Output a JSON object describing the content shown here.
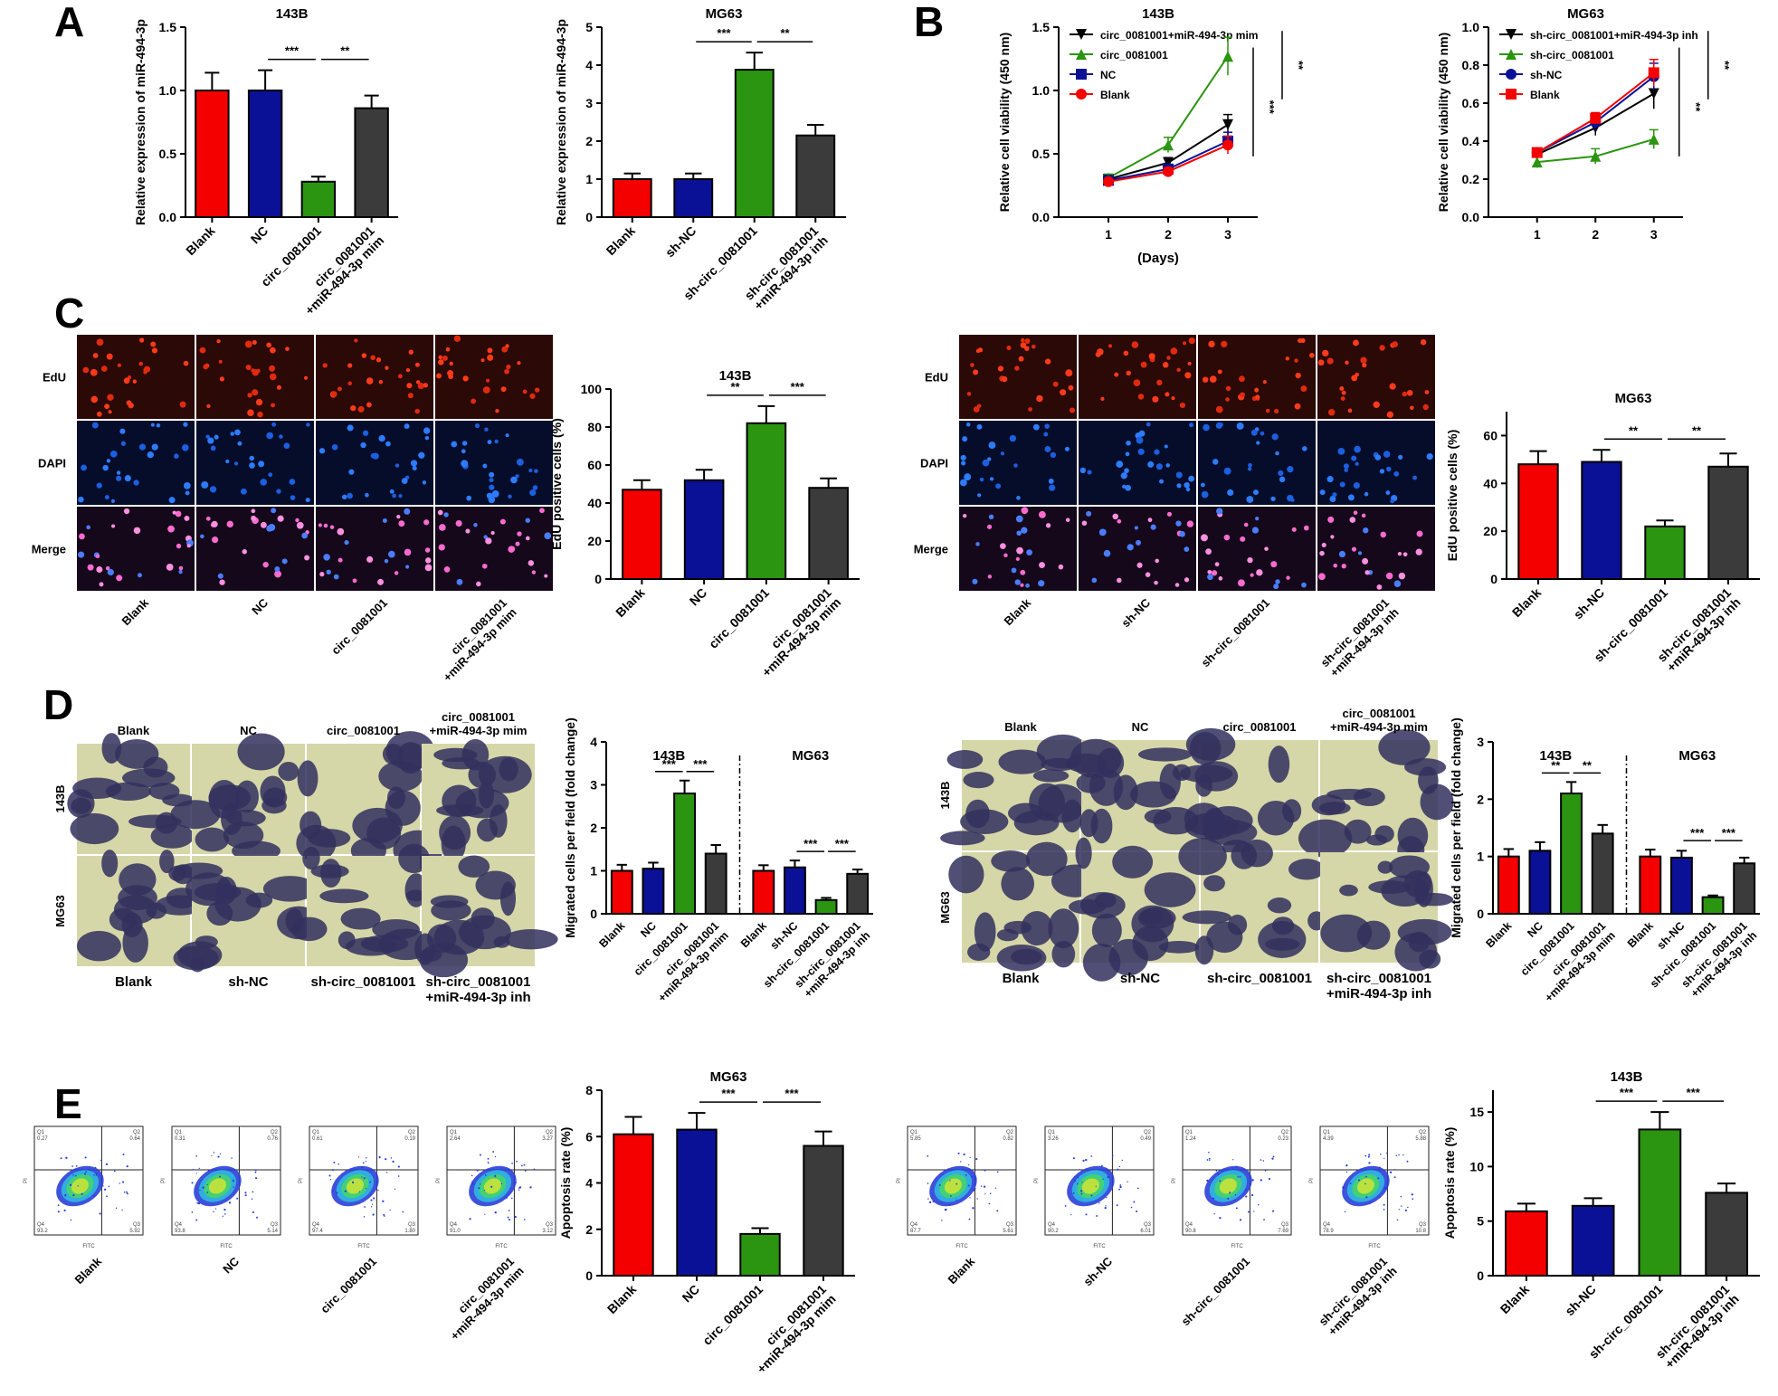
{
  "colors": {
    "red": "#f40000",
    "blue": "#0a1196",
    "green": "#2b9410",
    "dark": "#3b3b3b"
  },
  "panel_labels": [
    "A",
    "B",
    "C",
    "D",
    "E"
  ],
  "chart_data": [
    {
      "id": "A1",
      "type": "bar",
      "title": "143B",
      "ylabel": "Relative expression of miR-494-3p",
      "categories": [
        "Blank",
        "NC",
        "circ_0081001",
        "circ_0081001\n+miR-494-3p mim"
      ],
      "values": [
        1.0,
        1.0,
        0.28,
        0.86
      ],
      "errors": [
        0.14,
        0.16,
        0.04,
        0.1
      ],
      "ylim": [
        0,
        1.5
      ],
      "yticks": [
        "0.0",
        "0.5",
        "1.0",
        "1.5"
      ],
      "sig": [
        {
          "a": 1,
          "b": 2,
          "label": "***"
        },
        {
          "a": 2,
          "b": 3,
          "label": "**"
        }
      ]
    },
    {
      "id": "A2",
      "type": "bar",
      "title": "MG63",
      "ylabel": "Relative expression of miR-494-3p",
      "categories": [
        "Blank",
        "sh-NC",
        "sh-circ_0081001",
        "sh-circ_0081001\n+miR-494-3p inh"
      ],
      "values": [
        1.0,
        1.0,
        3.88,
        2.15
      ],
      "errors": [
        0.15,
        0.15,
        0.45,
        0.28
      ],
      "ylim": [
        0,
        5
      ],
      "yticks": [
        "0",
        "1",
        "2",
        "3",
        "4",
        "5"
      ],
      "sig": [
        {
          "a": 1,
          "b": 2,
          "label": "***"
        },
        {
          "a": 2,
          "b": 3,
          "label": "**"
        }
      ]
    },
    {
      "id": "B1",
      "type": "line",
      "title": "143B",
      "ylabel": "Relative cell viability  (450 nm)",
      "xlabel": "(Days)",
      "x": [
        1,
        2,
        3
      ],
      "xticks": [
        "1",
        "2",
        "3"
      ],
      "ylim": [
        0,
        1.5
      ],
      "yticks": [
        "0.0",
        "0.5",
        "1.0",
        "1.5"
      ],
      "series": [
        {
          "name": "circ_0081001+miR-494-3p mim",
          "color": "#000000",
          "marker": "tri-down",
          "values": [
            0.3,
            0.43,
            0.73
          ],
          "errors": [
            0.03,
            0.04,
            0.08
          ]
        },
        {
          "name": "circ_0081001",
          "color": "#2b9410",
          "marker": "tri-up",
          "values": [
            0.31,
            0.57,
            1.27
          ],
          "errors": [
            0.03,
            0.06,
            0.15
          ]
        },
        {
          "name": "NC",
          "color": "#0a1196",
          "marker": "square",
          "values": [
            0.29,
            0.38,
            0.6
          ],
          "errors": [
            0.02,
            0.03,
            0.07
          ]
        },
        {
          "name": "Blank",
          "color": "#f40000",
          "marker": "circle",
          "values": [
            0.28,
            0.36,
            0.57
          ],
          "errors": [
            0.02,
            0.03,
            0.07
          ]
        }
      ],
      "sig": [
        {
          "label": "***"
        },
        {
          "label": "**"
        }
      ]
    },
    {
      "id": "B2",
      "type": "line",
      "title": "MG63",
      "ylabel": "Relative cell viability  (450 nm)",
      "x": [
        1,
        2,
        3
      ],
      "xticks": [
        "1",
        "2",
        "3"
      ],
      "ylim": [
        0,
        1.0
      ],
      "yticks": [
        "0.0",
        "0.2",
        "0.4",
        "0.6",
        "0.8",
        "1.0"
      ],
      "series": [
        {
          "name": "sh-circ_0081001+miR-494-3p inh",
          "color": "#000000",
          "marker": "tri-down",
          "values": [
            0.33,
            0.47,
            0.65
          ],
          "errors": [
            0.02,
            0.04,
            0.08
          ]
        },
        {
          "name": "sh-circ_0081001",
          "color": "#2b9410",
          "marker": "tri-up",
          "values": [
            0.29,
            0.32,
            0.41
          ],
          "errors": [
            0.03,
            0.04,
            0.05
          ]
        },
        {
          "name": "sh-NC",
          "color": "#0a1196",
          "marker": "circle",
          "values": [
            0.34,
            0.5,
            0.74
          ],
          "errors": [
            0.02,
            0.04,
            0.07
          ]
        },
        {
          "name": "Blank",
          "color": "#f40000",
          "marker": "square",
          "values": [
            0.34,
            0.52,
            0.76
          ],
          "errors": [
            0.02,
            0.03,
            0.07
          ]
        }
      ],
      "sig": [
        {
          "label": "**"
        },
        {
          "label": "**"
        }
      ]
    },
    {
      "id": "C1",
      "type": "bar",
      "title": "143B",
      "ylabel": "EdU positive cells (%)",
      "categories": [
        "Blank",
        "NC",
        "circ_0081001",
        "circ_0081001\n+miR-494-3p mim"
      ],
      "values": [
        47,
        52,
        82,
        48
      ],
      "errors": [
        5,
        5.5,
        9,
        5
      ],
      "ylim": [
        0,
        100
      ],
      "yticks": [
        "0",
        "20",
        "40",
        "60",
        "80",
        "100"
      ],
      "sig": [
        {
          "a": 1,
          "b": 2,
          "label": "**"
        },
        {
          "a": 2,
          "b": 3,
          "label": "***"
        }
      ]
    },
    {
      "id": "C2",
      "type": "bar",
      "title": "MG63",
      "ylabel": "EdU positive cells (%)",
      "categories": [
        "Blank",
        "sh-NC",
        "sh-circ_0081001",
        "sh-circ_0081001\n+miR-494-3p inh"
      ],
      "values": [
        48,
        49,
        22,
        47
      ],
      "errors": [
        5.5,
        5,
        2.5,
        5.5
      ],
      "ylim": [
        0,
        70
      ],
      "yticks": [
        "0",
        "20",
        "40",
        "60"
      ],
      "sig": [
        {
          "a": 1,
          "b": 2,
          "label": "**"
        },
        {
          "a": 2,
          "b": 3,
          "label": "**"
        }
      ]
    },
    {
      "id": "D1",
      "type": "bar",
      "title": "",
      "ylabel": "Migrated cells per field (fold change)",
      "groups": [
        {
          "title": "143B",
          "categories": [
            "Blank",
            "NC",
            "circ_0081001",
            "circ_0081001\n+miR-494-3p mim"
          ],
          "values": [
            1.0,
            1.05,
            2.8,
            1.4
          ],
          "errors": [
            0.14,
            0.14,
            0.3,
            0.2
          ],
          "sig": [
            {
              "a": 1,
              "b": 2,
              "label": "***"
            },
            {
              "a": 2,
              "b": 3,
              "label": "***"
            }
          ]
        },
        {
          "title": "MG63",
          "categories": [
            "Blank",
            "sh-NC",
            "sh-circ_0081001",
            "sh-circ_0081001\n+miR-494-3p inh"
          ],
          "values": [
            1.0,
            1.08,
            0.32,
            0.93
          ],
          "errors": [
            0.13,
            0.16,
            0.05,
            0.1
          ],
          "sig": [
            {
              "a": 1,
              "b": 2,
              "label": "***"
            },
            {
              "a": 2,
              "b": 3,
              "label": "***"
            }
          ]
        }
      ],
      "ylim": [
        0,
        4
      ],
      "yticks": [
        "0",
        "1",
        "2",
        "3",
        "4"
      ]
    },
    {
      "id": "D2",
      "type": "bar",
      "title": "",
      "ylabel": "Migrated cells per field (fold change)",
      "groups": [
        {
          "title": "143B",
          "categories": [
            "Blank",
            "NC",
            "circ_0081001",
            "circ_0081001\n+miR-494-3p mim"
          ],
          "values": [
            1.0,
            1.1,
            2.1,
            1.4
          ],
          "errors": [
            0.13,
            0.15,
            0.2,
            0.15
          ],
          "sig": [
            {
              "a": 1,
              "b": 2,
              "label": "**"
            },
            {
              "a": 2,
              "b": 3,
              "label": "**"
            }
          ]
        },
        {
          "title": "MG63",
          "categories": [
            "Blank",
            "sh-NC",
            "sh-circ_0081001",
            "sh-circ_0081001\n+miR-494-3p inh"
          ],
          "values": [
            1.0,
            0.98,
            0.29,
            0.88
          ],
          "errors": [
            0.12,
            0.12,
            0.03,
            0.1
          ],
          "sig": [
            {
              "a": 1,
              "b": 2,
              "label": "***"
            },
            {
              "a": 2,
              "b": 3,
              "label": "***"
            }
          ]
        }
      ],
      "ylim": [
        0,
        3
      ],
      "yticks": [
        "0",
        "1",
        "2",
        "3"
      ]
    },
    {
      "id": "E1",
      "type": "bar",
      "title": "MG63",
      "ylabel": "Apoptosis rate (%)",
      "categories": [
        "Blank",
        "NC",
        "circ_0081001",
        "circ_0081001\n+miR-494-3p mim"
      ],
      "values": [
        6.1,
        6.3,
        1.8,
        5.6
      ],
      "errors": [
        0.75,
        0.72,
        0.25,
        0.62
      ],
      "ylim": [
        0,
        8
      ],
      "yticks": [
        "0",
        "2",
        "4",
        "6",
        "8"
      ],
      "sig": [
        {
          "a": 1,
          "b": 2,
          "label": "***"
        },
        {
          "a": 2,
          "b": 3,
          "label": "***"
        }
      ]
    },
    {
      "id": "E2",
      "type": "bar",
      "title": "143B",
      "ylabel": "Apoptosis rate (%)",
      "categories": [
        "Blank",
        "sh-NC",
        "sh-circ_0081001",
        "sh-circ_0081001\n+miR-494-3p inh"
      ],
      "values": [
        5.9,
        6.4,
        13.4,
        7.6
      ],
      "errors": [
        0.7,
        0.7,
        1.6,
        0.85
      ],
      "ylim": [
        0,
        17
      ],
      "yticks": [
        "0",
        "5",
        "10",
        "15"
      ],
      "sig": [
        {
          "a": 1,
          "b": 2,
          "label": "***"
        },
        {
          "a": 2,
          "b": 3,
          "label": "***"
        }
      ]
    }
  ],
  "micrographs": {
    "C_left_rows": [
      "EdU",
      "DAPI",
      "Merge"
    ],
    "C_left_cols": [
      "Blank",
      "NC",
      "circ_0081001",
      "circ_0081001\n+miR-494-3p mim"
    ],
    "C_right_rows": [
      "EdU",
      "DAPI",
      "Merge"
    ],
    "C_right_cols": [
      "Blank",
      "sh-NC",
      "sh-circ_0081001",
      "sh-circ_0081001\n+miR-494-3p inh"
    ],
    "D_top": [
      "Blank",
      "NC",
      "circ_0081001",
      "circ_0081001\n+miR-494-3p mim"
    ],
    "D_bottom": [
      "Blank",
      "sh-NC",
      "sh-circ_0081001",
      "sh-circ_0081001\n+miR-494-3p inh"
    ],
    "D_rows": [
      "143B",
      "MG63"
    ],
    "E_left_cols": [
      "Blank",
      "NC",
      "circ_0081001",
      "circ_0081001\n+miR-494-3p mim"
    ],
    "E_right_cols": [
      "Blank",
      "sh-NC",
      "sh-circ_0081001",
      "sh-circ_0081001\n+miR-494-3p inh"
    ],
    "E_left_quadrants": [
      [
        "0.27",
        "0.64",
        "93.2",
        "5.92"
      ],
      [
        "0.31",
        "0.76",
        "93.8",
        "5.14"
      ],
      [
        "0.61",
        "0.19",
        "97.4",
        "1.80"
      ],
      [
        "2.64",
        "3.27",
        "91.0",
        "3.12"
      ]
    ],
    "E_right_quadrants": [
      [
        "5.85",
        "0.82",
        "87.7",
        "5.61"
      ],
      [
        "3.26",
        "0.49",
        "90.2",
        "6.01"
      ],
      [
        "1.24",
        "0.23",
        "90.8",
        "7.69"
      ],
      [
        "4.39",
        "5.88",
        "78.9",
        "10.8"
      ]
    ],
    "E_quadrant_names": [
      "Q1",
      "Q2",
      "Q4",
      "Q3"
    ],
    "E_axis_labels": {
      "x": "FITC",
      "y": "PI"
    }
  }
}
